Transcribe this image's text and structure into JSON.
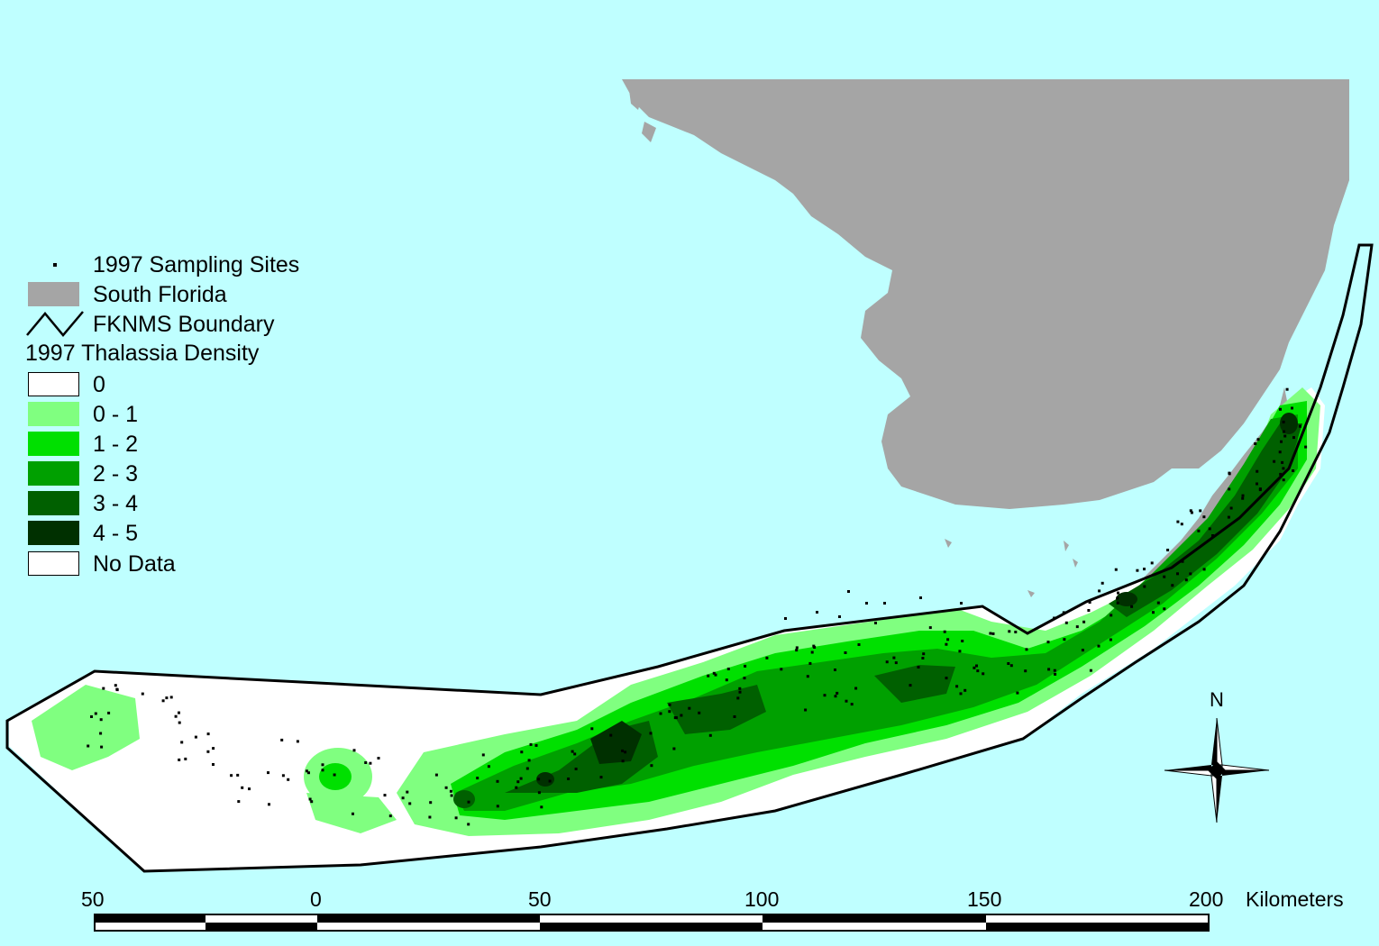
{
  "legend": {
    "sites_label": "1997 Sampling Sites",
    "florida_label": "South Florida",
    "boundary_label": "FKNMS Boundary",
    "density_title": "1997 Thalassia Density",
    "classes": [
      {
        "label": "0",
        "color": "#ffffff"
      },
      {
        "label": "0 - 1",
        "color": "#80ff80"
      },
      {
        "label": "1 - 2",
        "color": "#00e000"
      },
      {
        "label": "2 - 3",
        "color": "#00a000"
      },
      {
        "label": "3 - 4",
        "color": "#006000"
      },
      {
        "label": "4 - 5",
        "color": "#003000"
      },
      {
        "label": "No Data",
        "color": "#ffffff"
      }
    ],
    "florida_color": "#a5a5a5",
    "water_color": "#bfffff"
  },
  "compass": {
    "north_label": "N"
  },
  "scale_bar": {
    "ticks": [
      "50",
      "0",
      "50",
      "100",
      "150",
      "200"
    ],
    "unit": "Kilometers"
  }
}
